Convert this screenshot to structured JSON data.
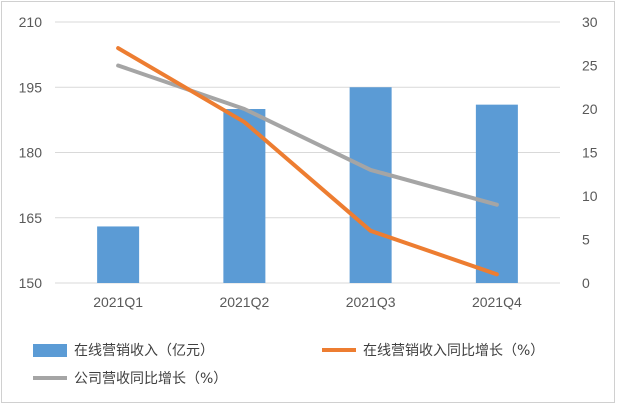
{
  "chart_data": {
    "type": "bar",
    "categories": [
      "2021Q1",
      "2021Q2",
      "2021Q3",
      "2021Q4"
    ],
    "series": [
      {
        "name": "在线营销收入（亿元）",
        "kind": "bar",
        "axis": "left",
        "color": "#5b9bd5",
        "values": [
          163,
          190,
          195,
          191
        ]
      },
      {
        "name": "在线营销收入同比增长（%）",
        "kind": "line",
        "axis": "right",
        "color": "#ed7d31",
        "values": [
          27,
          18.5,
          6,
          1
        ]
      },
      {
        "name": "公司营收同比增长（%）",
        "kind": "line",
        "axis": "right",
        "color": "#a5a5a5",
        "values": [
          25,
          20,
          13,
          9
        ]
      }
    ],
    "y_left": {
      "min": 150,
      "max": 210,
      "ticks": [
        "210",
        "195",
        "180",
        "165",
        "150"
      ]
    },
    "y_right": {
      "min": 0,
      "max": 30,
      "ticks": [
        "30",
        "25",
        "20",
        "15",
        "10",
        "5",
        "0"
      ]
    },
    "grid": true,
    "legend_position": "bottom"
  }
}
